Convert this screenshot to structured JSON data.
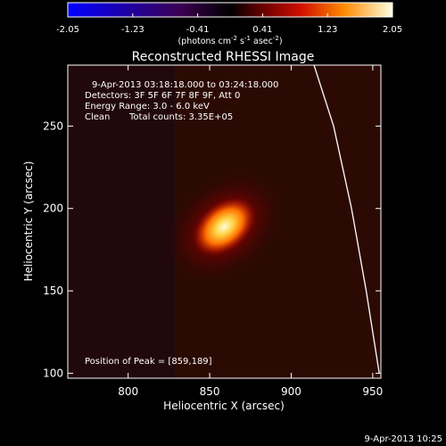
{
  "chart_data": {
    "type": "heatmap",
    "title": "Reconstructed RHESSI Image",
    "xlabel": "Heliocentric X (arcsec)",
    "ylabel": "Heliocentric Y (arcsec)",
    "xlim": [
      763,
      955
    ],
    "ylim": [
      97,
      287
    ],
    "x_ticks": [
      800,
      850,
      900,
      950
    ],
    "y_ticks": [
      100,
      150,
      200,
      250
    ],
    "colorbar": {
      "range": [
        -2.05,
        2.05
      ],
      "ticks": [
        "-2.05",
        "-1.23",
        "-0.41",
        "0.41",
        "1.23",
        "2.05"
      ],
      "units_prefix": "(photons cm",
      "units_exp1": "-2",
      "units_mid": " s",
      "units_exp2": "-1",
      "units_suffix": " asec",
      "units_exp3": "-2",
      "units_close": ")"
    },
    "annotations": {
      "time_range": "9-Apr-2013 03:18:18.000 to 03:24:18.000",
      "detectors": "Detectors: 3F 5F 6F 7F 8F 9F, Att 0",
      "energy": "Energy Range: 3.0 - 6.0 keV",
      "algorithm": "Clean",
      "counts": "Total counts: 3.35E+05",
      "peak": "Position of Peak = [859,189]"
    },
    "source": {
      "peak_x": 859,
      "peak_y": 189,
      "peak_value": 2.05,
      "core_sigma_major_arcsec": 9,
      "core_sigma_minor_arcsec": 6,
      "halo_sigma_major_arcsec": 18,
      "halo_sigma_minor_arcsec": 13,
      "orientation_deg": 40
    },
    "limb_points": [
      [
        914,
        287
      ],
      [
        926,
        250
      ],
      [
        937,
        200
      ],
      [
        946,
        150
      ],
      [
        954,
        100
      ]
    ],
    "plot_date": "9-Apr-2013 10:25"
  }
}
